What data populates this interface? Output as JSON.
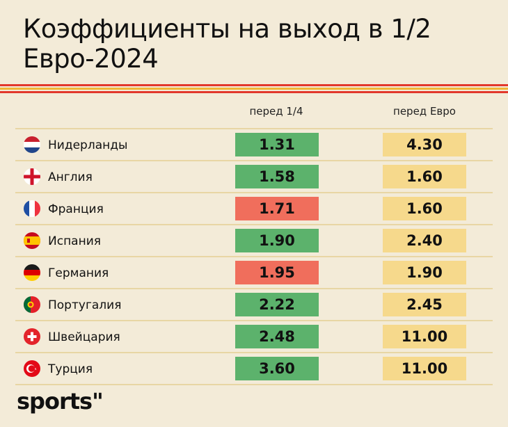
{
  "title": "Коэффициенты на выход в 1/2 Евро-2024",
  "logo": "sports\"",
  "colors": {
    "background": "#f3ebd8",
    "stripe_red": "#e2382b",
    "stripe_yellow": "#f0b636",
    "odds_shortened": "#5cb26c",
    "odds_lengthened": "#f06e5c",
    "odds_before_euro": "#f6d98c"
  },
  "chart_data": {
    "type": "table",
    "title": "Коэффициенты на выход в 1/2 Евро-2024",
    "columns": [
      "",
      "перед 1/4",
      "перед Евро"
    ],
    "rows": [
      {
        "country": "Нидерланды",
        "flag": "netherlands-flag-icon",
        "before_qf": "1.31",
        "before_euro": "4.30",
        "trend": "green"
      },
      {
        "country": "Англия",
        "flag": "england-flag-icon",
        "before_qf": "1.58",
        "before_euro": "1.60",
        "trend": "green"
      },
      {
        "country": "Франция",
        "flag": "france-flag-icon",
        "before_qf": "1.71",
        "before_euro": "1.60",
        "trend": "red"
      },
      {
        "country": "Испания",
        "flag": "spain-flag-icon",
        "before_qf": "1.90",
        "before_euro": "2.40",
        "trend": "green"
      },
      {
        "country": "Германия",
        "flag": "germany-flag-icon",
        "before_qf": "1.95",
        "before_euro": "1.90",
        "trend": "red"
      },
      {
        "country": "Португалия",
        "flag": "portugal-flag-icon",
        "before_qf": "2.22",
        "before_euro": "2.45",
        "trend": "green"
      },
      {
        "country": "Швейцария",
        "flag": "switzerland-flag-icon",
        "before_qf": "2.48",
        "before_euro": "11.00",
        "trend": "green"
      },
      {
        "country": "Турция",
        "flag": "turkey-flag-icon",
        "before_qf": "3.60",
        "before_euro": "11.00",
        "trend": "green"
      }
    ]
  }
}
